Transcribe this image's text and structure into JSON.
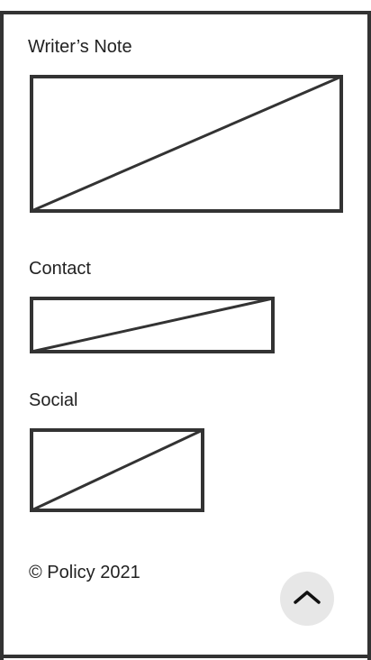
{
  "sections": {
    "writers_note": {
      "heading": "Writer’s Note"
    },
    "contact": {
      "heading": "Contact"
    },
    "social": {
      "heading": "Social"
    }
  },
  "footer": {
    "copyright": "© Policy 2021"
  },
  "back_to_top": {
    "icon": "chevron-up-icon"
  },
  "colors": {
    "stroke": "#333333",
    "button_bg": "#e7e7e7",
    "background": "#ffffff"
  }
}
